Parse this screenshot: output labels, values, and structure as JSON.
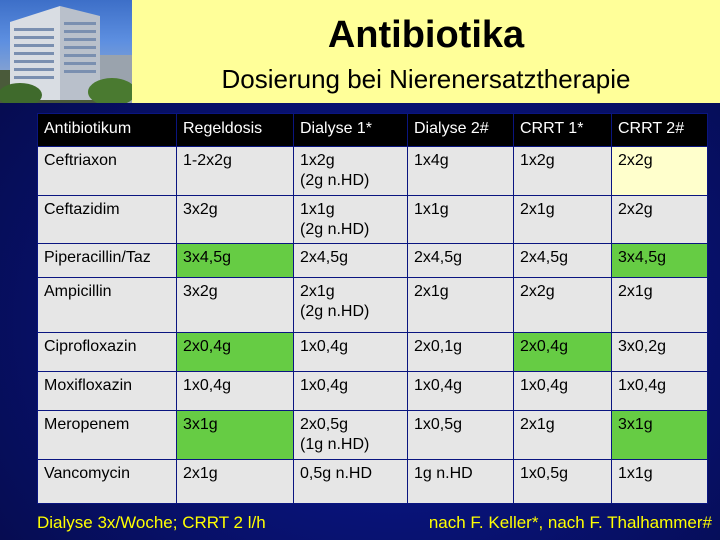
{
  "slide": {
    "title": "Antibiotika",
    "subtitle": "Dosierung bei Nierenersatztherapie",
    "footer_left": "Dialyse 3x/Woche; CRRT  2 l/h",
    "footer_right": "nach F. Keller*, nach F. Thalhammer#"
  },
  "table": {
    "headers": [
      "Antibiotikum",
      "Regeldosis",
      "Dialyse 1*",
      "Dialyse 2#",
      "CRRT 1*",
      "CRRT 2#"
    ],
    "rows": [
      {
        "cells": [
          "Ceftriaxon",
          "1-2x2g",
          "1x2g",
          "1x4g",
          "1x2g",
          "2x2g"
        ],
        "notes": [
          "",
          "",
          "(2g n.HD)",
          "",
          "",
          ""
        ],
        "colors": [
          "default",
          "default",
          "default",
          "default",
          "default",
          "yellow"
        ]
      },
      {
        "cells": [
          "Ceftazidim",
          "3x2g",
          "1x1g",
          "1x1g",
          "2x1g",
          "2x2g"
        ],
        "notes": [
          "",
          "",
          "(2g n.HD)",
          "",
          "",
          ""
        ],
        "colors": [
          "default",
          "default",
          "default",
          "default",
          "default",
          "default"
        ]
      },
      {
        "cells": [
          "Piperacillin/Taz",
          "3x4,5g",
          "2x4,5g",
          "2x4,5g",
          "2x4,5g",
          "3x4,5g"
        ],
        "notes": [
          "",
          "",
          "",
          "",
          "",
          ""
        ],
        "colors": [
          "default",
          "green",
          "default",
          "default",
          "default",
          "green"
        ]
      },
      {
        "cells": [
          "Ampicillin",
          "3x2g",
          "2x1g",
          "2x1g",
          "2x2g",
          "2x1g"
        ],
        "notes": [
          "",
          "",
          "(2g n.HD)",
          "",
          "",
          ""
        ],
        "colors": [
          "default",
          "default",
          "default",
          "default",
          "default",
          "default"
        ]
      },
      {
        "cells": [
          "Ciprofloxazin",
          "2x0,4g",
          "1x0,4g",
          "2x0,1g",
          "2x0,4g",
          "3x0,2g"
        ],
        "notes": [
          "",
          "",
          "",
          "",
          "",
          ""
        ],
        "colors": [
          "default",
          "green",
          "default",
          "default",
          "green",
          "default"
        ]
      },
      {
        "cells": [
          "Moxifloxazin",
          "1x0,4g",
          "1x0,4g",
          "1x0,4g",
          "1x0,4g",
          "1x0,4g"
        ],
        "notes": [
          "",
          "",
          "",
          "",
          "",
          ""
        ],
        "colors": [
          "default",
          "default",
          "default",
          "default",
          "default",
          "default"
        ]
      },
      {
        "cells": [
          "Meropenem",
          "3x1g",
          "2x0,5g",
          "1x0,5g",
          "2x1g",
          "3x1g"
        ],
        "notes": [
          "",
          "",
          "(1g n.HD)",
          "",
          "",
          ""
        ],
        "colors": [
          "default",
          "green",
          "default",
          "default",
          "default",
          "green"
        ]
      },
      {
        "cells": [
          "Vancomycin",
          "2x1g",
          "0,5g n.HD",
          "1g n.HD",
          "1x0,5g",
          "1x1g"
        ],
        "notes": [
          "",
          "",
          "",
          "",
          "",
          ""
        ],
        "colors": [
          "default",
          "default",
          "default",
          "default",
          "default",
          "default"
        ]
      }
    ]
  }
}
